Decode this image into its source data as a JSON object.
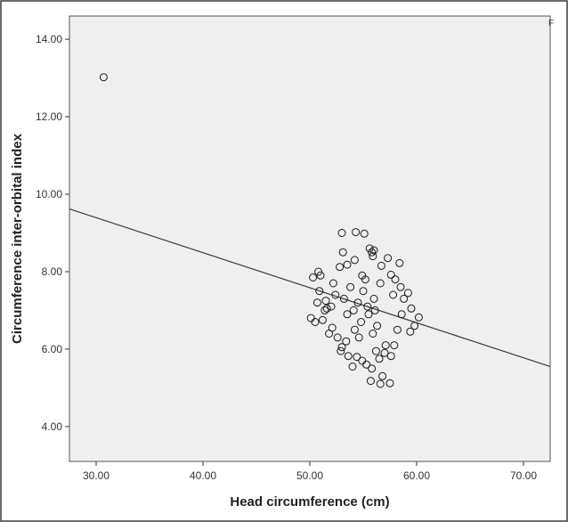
{
  "chart_data": {
    "type": "scatter",
    "xlabel": "Head circumference (cm)",
    "ylabel": "Circumference inter-orbital index",
    "xlim": [
      27.5,
      72.5
    ],
    "ylim": [
      3.1,
      14.6
    ],
    "x_ticks": [
      "30.00",
      "40.00",
      "50.00",
      "60.00",
      "70.00"
    ],
    "y_ticks": [
      "4.00",
      "6.00",
      "8.00",
      "10.00",
      "12.00",
      "14.00"
    ],
    "corner_mark": "F",
    "grid": false,
    "legend": "none",
    "fit_line": {
      "x": [
        27.5,
        72.5
      ],
      "y": [
        9.62,
        5.55
      ]
    },
    "marker_color": "#1a1a1a",
    "background_color": "#efefef",
    "points": [
      [
        30.7,
        13.02
      ],
      [
        53.0,
        9.0
      ],
      [
        54.3,
        9.02
      ],
      [
        55.1,
        8.98
      ],
      [
        55.6,
        8.6
      ],
      [
        55.8,
        8.5
      ],
      [
        56.0,
        8.55
      ],
      [
        57.3,
        8.35
      ],
      [
        58.4,
        8.22
      ],
      [
        54.2,
        8.3
      ],
      [
        53.5,
        8.18
      ],
      [
        52.8,
        8.12
      ],
      [
        55.9,
        8.4
      ],
      [
        53.1,
        8.5
      ],
      [
        56.7,
        8.15
      ],
      [
        50.8,
        8.0
      ],
      [
        50.3,
        7.85
      ],
      [
        51.0,
        7.9
      ],
      [
        52.2,
        7.7
      ],
      [
        57.6,
        7.92
      ],
      [
        58.0,
        7.8
      ],
      [
        59.2,
        7.45
      ],
      [
        58.8,
        7.3
      ],
      [
        59.5,
        7.05
      ],
      [
        60.2,
        6.82
      ],
      [
        59.8,
        6.6
      ],
      [
        59.4,
        6.45
      ],
      [
        50.1,
        6.8
      ],
      [
        50.5,
        6.7
      ],
      [
        51.2,
        6.75
      ],
      [
        51.8,
        6.4
      ],
      [
        52.1,
        6.55
      ],
      [
        51.5,
        7.25
      ],
      [
        50.9,
        7.5
      ],
      [
        51.6,
        7.05
      ],
      [
        52.6,
        6.3
      ],
      [
        53.0,
        6.05
      ],
      [
        52.9,
        5.95
      ],
      [
        53.6,
        5.82
      ],
      [
        54.0,
        5.55
      ],
      [
        54.9,
        5.7
      ],
      [
        55.3,
        5.6
      ],
      [
        55.8,
        5.5
      ],
      [
        56.2,
        5.95
      ],
      [
        57.0,
        5.9
      ],
      [
        57.6,
        5.82
      ],
      [
        57.9,
        6.1
      ],
      [
        55.7,
        5.18
      ],
      [
        56.6,
        5.1
      ],
      [
        57.5,
        5.12
      ],
      [
        56.8,
        5.3
      ],
      [
        54.4,
        5.8
      ],
      [
        56.5,
        5.75
      ],
      [
        57.1,
        6.1
      ],
      [
        53.4,
        6.2
      ],
      [
        58.2,
        6.5
      ],
      [
        58.6,
        6.9
      ],
      [
        58.5,
        7.6
      ],
      [
        57.8,
        7.4
      ],
      [
        52.4,
        7.4
      ],
      [
        52.0,
        7.1
      ],
      [
        51.4,
        7.0
      ],
      [
        50.7,
        7.2
      ],
      [
        54.5,
        7.2
      ],
      [
        55.0,
        7.5
      ],
      [
        55.5,
        6.9
      ],
      [
        54.8,
        6.7
      ],
      [
        55.2,
        7.8
      ],
      [
        54.1,
        7.0
      ],
      [
        56.0,
        7.3
      ],
      [
        53.8,
        7.6
      ],
      [
        56.3,
        6.6
      ],
      [
        54.6,
        6.3
      ],
      [
        55.9,
        6.4
      ],
      [
        53.5,
        6.9
      ],
      [
        56.6,
        7.7
      ],
      [
        53.2,
        7.3
      ],
      [
        55.4,
        7.1
      ],
      [
        54.9,
        7.9
      ],
      [
        56.1,
        7.0
      ],
      [
        54.2,
        6.5
      ]
    ]
  }
}
